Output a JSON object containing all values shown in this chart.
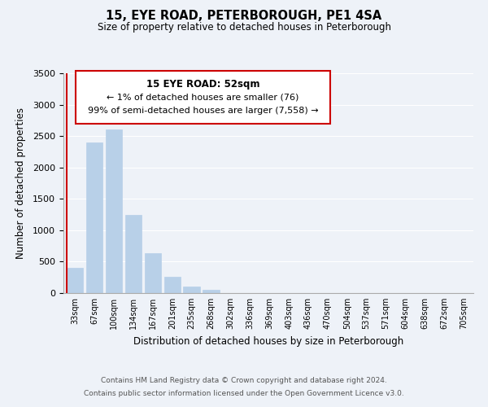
{
  "title": "15, EYE ROAD, PETERBOROUGH, PE1 4SA",
  "subtitle": "Size of property relative to detached houses in Peterborough",
  "xlabel": "Distribution of detached houses by size in Peterborough",
  "ylabel": "Number of detached properties",
  "bar_color": "#b8d0e8",
  "marker_color": "#cc0000",
  "categories": [
    "33sqm",
    "67sqm",
    "100sqm",
    "134sqm",
    "167sqm",
    "201sqm",
    "235sqm",
    "268sqm",
    "302sqm",
    "336sqm",
    "369sqm",
    "403sqm",
    "436sqm",
    "470sqm",
    "504sqm",
    "537sqm",
    "571sqm",
    "604sqm",
    "638sqm",
    "672sqm",
    "705sqm"
  ],
  "values": [
    400,
    2400,
    2600,
    1250,
    640,
    260,
    105,
    55,
    0,
    0,
    0,
    0,
    0,
    0,
    0,
    0,
    0,
    0,
    0,
    0,
    0
  ],
  "ylim": [
    0,
    3500
  ],
  "yticks": [
    0,
    500,
    1000,
    1500,
    2000,
    2500,
    3000,
    3500
  ],
  "annotation_title": "15 EYE ROAD: 52sqm",
  "annotation_line1": "← 1% of detached houses are smaller (76)",
  "annotation_line2": "99% of semi-detached houses are larger (7,558) →",
  "footer_line1": "Contains HM Land Registry data © Crown copyright and database right 2024.",
  "footer_line2": "Contains public sector information licensed under the Open Government Licence v3.0.",
  "background_color": "#eef2f8"
}
